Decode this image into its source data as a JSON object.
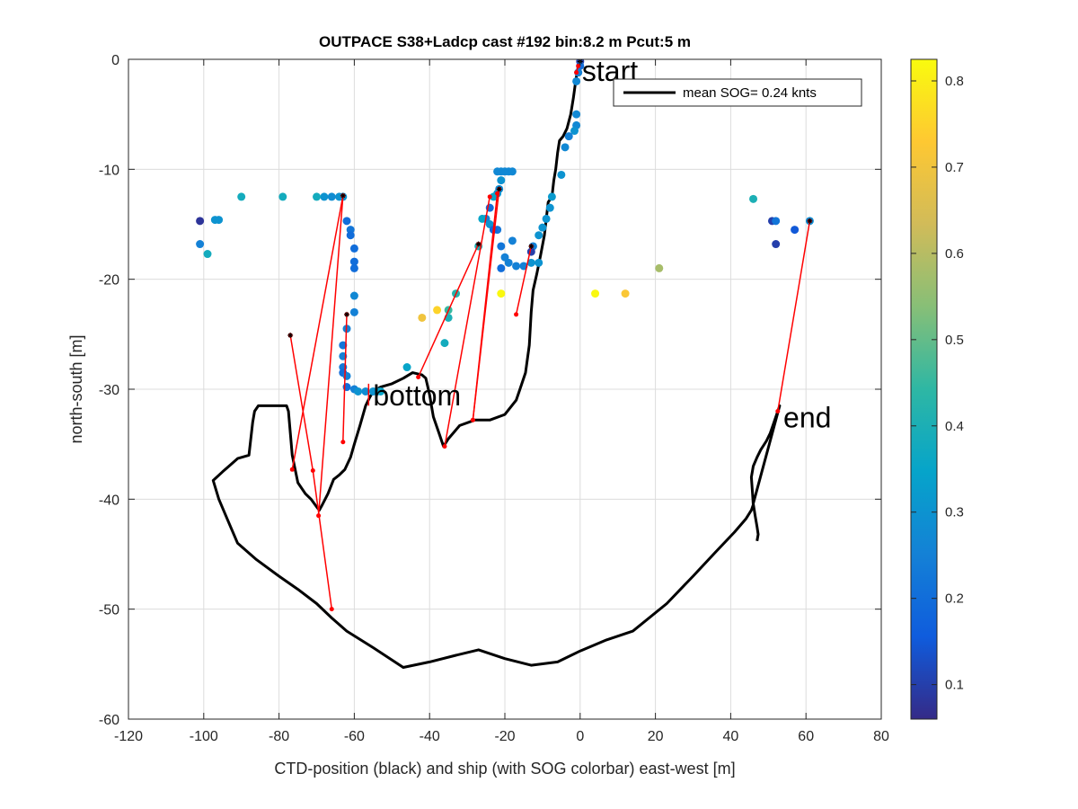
{
  "chart_data": {
    "type": "scatter",
    "title": "OUTPACE S38+Ladcp cast #192 bin:8.2 m  Pcut:5 m",
    "xlabel": "CTD-position (black) and ship (with SOG colorbar) east-west [m]",
    "ylabel": "north-south [m]",
    "xlim": [
      -120,
      80
    ],
    "ylim": [
      -60,
      0
    ],
    "xticks": [
      -120,
      -100,
      -80,
      -60,
      -40,
      -20,
      0,
      20,
      40,
      60,
      80
    ],
    "yticks": [
      -60,
      -50,
      -40,
      -30,
      -20,
      -10,
      0
    ],
    "grid": true,
    "legend": {
      "entries": [
        {
          "label": "mean SOG=  0.24 knts",
          "color": "#000000"
        }
      ],
      "location": "top-right"
    },
    "colorbar": {
      "min": 0.06,
      "max": 0.825,
      "ticks": [
        0.1,
        0.2,
        0.3,
        0.4,
        0.5,
        0.6,
        0.7,
        0.8
      ],
      "colormap": "parula"
    },
    "annotations": [
      {
        "text": "start",
        "x": 0.5,
        "y": -1
      },
      {
        "text": "bottom",
        "x": -55,
        "y": -30.5
      },
      {
        "text": "end",
        "x": 54,
        "y": -32.5
      }
    ],
    "ctd_track": [
      [
        -0.3,
        -0.2
      ],
      [
        -0.6,
        -0.8
      ],
      [
        -1.2,
        -2
      ],
      [
        -1.8,
        -3.5
      ],
      [
        -2.5,
        -5
      ],
      [
        -3.5,
        -6.3
      ],
      [
        -4.5,
        -7
      ],
      [
        -5.5,
        -7.4
      ],
      [
        -6,
        -8.5
      ],
      [
        -6.5,
        -10
      ],
      [
        -7,
        -11
      ],
      [
        -7.5,
        -12.5
      ],
      [
        -8.5,
        -13
      ],
      [
        -9,
        -14.5
      ],
      [
        -9.5,
        -16
      ],
      [
        -10.5,
        -17.8
      ],
      [
        -11.5,
        -19.5
      ],
      [
        -12.5,
        -21
      ],
      [
        -13,
        -23
      ],
      [
        -13.5,
        -26
      ],
      [
        -14.5,
        -28.5
      ],
      [
        -16,
        -30
      ],
      [
        -17,
        -31
      ],
      [
        -20,
        -32.3
      ],
      [
        -24,
        -32.8
      ],
      [
        -28,
        -32.8
      ],
      [
        -32,
        -33.3
      ],
      [
        -35,
        -34.5
      ],
      [
        -36.3,
        -35.2
      ],
      [
        -37.5,
        -34
      ],
      [
        -39,
        -32.5
      ],
      [
        -40,
        -30.5
      ],
      [
        -41,
        -29
      ],
      [
        -42,
        -28.7
      ],
      [
        -44.5,
        -28.5
      ],
      [
        -47,
        -29
      ],
      [
        -50,
        -29.5
      ],
      [
        -53,
        -29.8
      ],
      [
        -55,
        -30.2
      ],
      [
        -56,
        -30.8
      ],
      [
        -57,
        -31.5
      ],
      [
        -58.5,
        -33.3
      ],
      [
        -60,
        -35
      ],
      [
        -61,
        -36.2
      ],
      [
        -62.5,
        -37.3
      ],
      [
        -64,
        -37.8
      ],
      [
        -65.5,
        -38.2
      ],
      [
        -67,
        -39.5
      ],
      [
        -68.5,
        -40.5
      ],
      [
        -69.3,
        -41
      ],
      [
        -70,
        -40.7
      ],
      [
        -71.5,
        -40
      ],
      [
        -73,
        -39.5
      ],
      [
        -75,
        -38.5
      ],
      [
        -76.5,
        -36
      ],
      [
        -77,
        -34
      ],
      [
        -77.5,
        -32
      ],
      [
        -78,
        -31.5
      ],
      [
        -85.5,
        -31.5
      ],
      [
        -86.5,
        -32
      ],
      [
        -87,
        -33
      ],
      [
        -87.5,
        -34.5
      ],
      [
        -88,
        -36
      ],
      [
        -91,
        -36.3
      ],
      [
        -95,
        -37.5
      ],
      [
        -97.5,
        -38.3
      ],
      [
        -96,
        -40
      ],
      [
        -93.5,
        -42
      ],
      [
        -91,
        -44
      ],
      [
        -86,
        -45.5
      ],
      [
        -80,
        -47
      ],
      [
        -75,
        -48.2
      ],
      [
        -70,
        -49.5
      ],
      [
        -66,
        -50.8
      ],
      [
        -62,
        -52
      ],
      [
        -55,
        -53.5
      ],
      [
        -47,
        -55.3
      ],
      [
        -40,
        -54.8
      ],
      [
        -33,
        -54.2
      ],
      [
        -27,
        -53.7
      ],
      [
        -20,
        -54.5
      ],
      [
        -13,
        -55.1
      ],
      [
        -6,
        -54.8
      ],
      [
        0,
        -53.8
      ],
      [
        7,
        -52.8
      ],
      [
        14,
        -52
      ],
      [
        23,
        -49.5
      ],
      [
        30,
        -47
      ],
      [
        36,
        -44.8
      ],
      [
        41,
        -43
      ],
      [
        44,
        -41.8
      ],
      [
        45.5,
        -41
      ],
      [
        46,
        -40.5
      ],
      [
        45.8,
        -39.5
      ],
      [
        45.5,
        -38
      ],
      [
        46,
        -37
      ],
      [
        47,
        -36.2
      ],
      [
        48,
        -35.5
      ],
      [
        49.5,
        -34.7
      ],
      [
        50.5,
        -34
      ],
      [
        51.5,
        -33
      ],
      [
        52.5,
        -32
      ],
      [
        53,
        -31.5
      ],
      [
        46,
        -40.4
      ],
      [
        46.5,
        -41.5
      ],
      [
        47,
        -42.5
      ],
      [
        47.3,
        -43.2
      ],
      [
        47,
        -43.8
      ]
    ],
    "series": [
      {
        "name": "ship SOG",
        "points": [
          [
            0,
            -0.2,
            0.1
          ],
          [
            0,
            -0.6,
            0.2
          ],
          [
            -0.5,
            -1.2,
            0.25
          ],
          [
            -1,
            -2,
            0.27
          ],
          [
            -1,
            -5,
            0.27
          ],
          [
            -1,
            -6,
            0.27
          ],
          [
            -1.5,
            -6.5,
            0.3
          ],
          [
            -3,
            -7,
            0.25
          ],
          [
            -4,
            -8,
            0.27
          ],
          [
            -5,
            -10.5,
            0.3
          ],
          [
            -7.5,
            -12.5,
            0.32
          ],
          [
            -8,
            -13.5,
            0.3
          ],
          [
            -9,
            -14.5,
            0.3
          ],
          [
            -10,
            -15.3,
            0.3
          ],
          [
            -11,
            -16,
            0.3
          ],
          [
            -12.5,
            -17,
            0.25
          ],
          [
            -13,
            -17.5,
            0.1
          ],
          [
            -20,
            -10.2,
            0.27
          ],
          [
            -21,
            -10.2,
            0.27
          ],
          [
            -22,
            -10.2,
            0.27
          ],
          [
            -19,
            -10.2,
            0.27
          ],
          [
            -18,
            -10.2,
            0.27
          ],
          [
            -21,
            -11,
            0.3
          ],
          [
            -21.5,
            -11.8,
            0.28
          ],
          [
            -22,
            -12.2,
            0.3
          ],
          [
            -23,
            -12.5,
            0.35
          ],
          [
            -24,
            -13.5,
            0.2
          ],
          [
            -25,
            -14.5,
            0.25
          ],
          [
            -24,
            -15,
            0.3
          ],
          [
            -22,
            -15.5,
            0.22
          ],
          [
            -21,
            -17,
            0.22
          ],
          [
            -20,
            -18,
            0.25
          ],
          [
            -18,
            -16.5,
            0.25
          ],
          [
            -19,
            -18.5,
            0.25
          ],
          [
            -17,
            -18.8,
            0.25
          ],
          [
            -15,
            -18.8,
            0.25
          ],
          [
            -13,
            -18.5,
            0.3
          ],
          [
            -11,
            -18.5,
            0.3
          ],
          [
            -21,
            -19,
            0.2
          ],
          [
            -26,
            -14.5,
            0.35
          ],
          [
            -23,
            -15.5,
            0.18
          ],
          [
            -27,
            -17,
            0.4
          ],
          [
            -63,
            -12.5,
            0.3
          ],
          [
            -64,
            -12.5,
            0.3
          ],
          [
            -66,
            -12.5,
            0.28
          ],
          [
            -68,
            -12.5,
            0.3
          ],
          [
            -70,
            -12.5,
            0.38
          ],
          [
            -79,
            -12.5,
            0.38
          ],
          [
            -90,
            -12.5,
            0.38
          ],
          [
            -62,
            -14.7,
            0.2
          ],
          [
            -61,
            -15.5,
            0.22
          ],
          [
            -61,
            -16,
            0.2
          ],
          [
            -60,
            -17.2,
            0.2
          ],
          [
            -60,
            -18.4,
            0.2
          ],
          [
            -60,
            -19,
            0.2
          ],
          [
            -60,
            -21.5,
            0.27
          ],
          [
            -60,
            -23,
            0.25
          ],
          [
            -62,
            -24.5,
            0.25
          ],
          [
            -63,
            -26,
            0.22
          ],
          [
            -63,
            -27,
            0.25
          ],
          [
            -63,
            -28,
            0.23
          ],
          [
            -63,
            -28.5,
            0.2
          ],
          [
            -62,
            -28.8,
            0.25
          ],
          [
            -62,
            -29.8,
            0.2
          ],
          [
            -60,
            -30,
            0.25
          ],
          [
            -59,
            -30.2,
            0.3
          ],
          [
            -57,
            -30.2,
            0.28
          ],
          [
            -55,
            -30.2,
            0.3
          ],
          [
            -54,
            -30.2,
            0.3
          ],
          [
            -53,
            -30.2,
            0.35
          ],
          [
            -46,
            -28,
            0.35
          ],
          [
            -42,
            -23.5,
            0.7
          ],
          [
            -38,
            -22.8,
            0.75
          ],
          [
            -35,
            -23.5,
            0.4
          ],
          [
            -35,
            -22.8,
            0.45
          ],
          [
            -33,
            -21.3,
            0.42
          ],
          [
            -36,
            -25.8,
            0.38
          ],
          [
            -21,
            -21.3,
            0.82
          ],
          [
            4,
            -21.3,
            0.82
          ],
          [
            12,
            -21.3,
            0.72
          ],
          [
            21,
            -19,
            0.58
          ],
          [
            -101,
            -14.7,
            0.08
          ],
          [
            -96,
            -14.6,
            0.3
          ],
          [
            -97,
            -14.6,
            0.3
          ],
          [
            -101,
            -16.8,
            0.25
          ],
          [
            -99,
            -17.7,
            0.38
          ],
          [
            46,
            -12.7,
            0.4
          ],
          [
            51,
            -14.7,
            0.1
          ],
          [
            52,
            -14.7,
            0.22
          ],
          [
            57,
            -15.5,
            0.15
          ],
          [
            52,
            -16.8,
            0.1
          ],
          [
            61,
            -14.7,
            0.28
          ]
        ]
      }
    ],
    "ladcp_segments": [
      [
        [
          -77,
          -25.1
        ],
        [
          -71,
          -37.4
        ],
        [
          -66,
          -50
        ]
      ],
      [
        [
          -63,
          -12.4
        ],
        [
          -69.5,
          -41.5
        ]
      ],
      [
        [
          -63,
          -12.4
        ],
        [
          -76.5,
          -37.3
        ]
      ],
      [
        [
          -62,
          -23.2
        ],
        [
          -63,
          -34.8
        ]
      ],
      [
        [
          -27,
          -16.8
        ],
        [
          -43,
          -28.9
        ]
      ],
      [
        [
          -24,
          -12.5
        ],
        [
          -36,
          -35.2
        ]
      ],
      [
        [
          -22,
          -12.2
        ],
        [
          -28.5,
          -32.8
        ]
      ],
      [
        [
          -21.5,
          -11.8
        ],
        [
          -28.5,
          -32.8
        ]
      ],
      [
        [
          -13,
          -17
        ],
        [
          -17,
          -23.2
        ]
      ],
      [
        [
          -0.5,
          -0.6
        ],
        [
          -1,
          -1.2
        ]
      ],
      [
        [
          61,
          -14.7
        ],
        [
          52.5,
          -32
        ]
      ]
    ],
    "ctd_station_markers": [
      [
        -77,
        -25.1
      ],
      [
        -63,
        -12.4
      ],
      [
        -62,
        -23.2
      ],
      [
        -27,
        -16.8
      ],
      [
        -21.5,
        -11.8
      ],
      [
        -13,
        -17
      ],
      [
        0,
        -0.2
      ],
      [
        61,
        -14.7
      ]
    ]
  }
}
